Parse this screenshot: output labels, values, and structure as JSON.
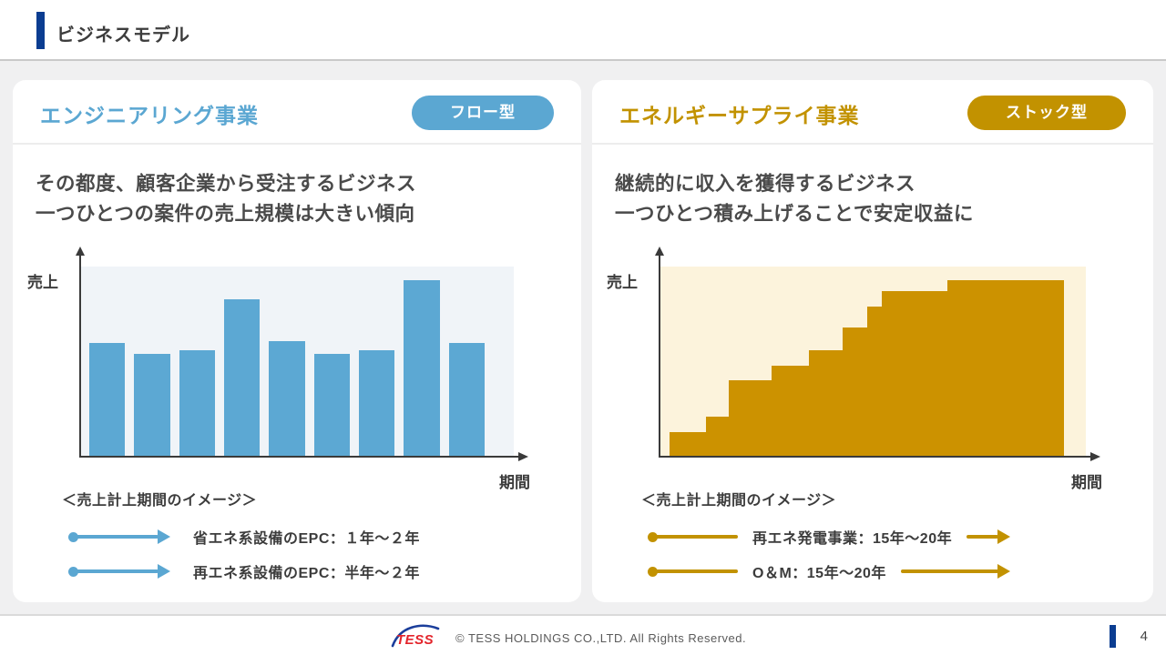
{
  "header": {
    "title": "ビジネスモデル"
  },
  "panels": [
    {
      "title": "エンジニアリング事業",
      "badge": "フロー型",
      "description_line1": "その都度、顧客企業から受注するビジネス",
      "description_line2": "一つひとつの案件の売上規模は大きい傾向",
      "legend_header": "＜売上計上期間のイメージ＞",
      "legend_items": [
        {
          "label": "省エネ系設備のEPC：１年〜２年",
          "trailing_arrow": false
        },
        {
          "label": "再エネ系設備のEPC：半年〜２年",
          "trailing_arrow": false
        }
      ],
      "colors": {
        "accent": "#5BA7D2",
        "plot_bg": "#F0F4F8",
        "fill": "#5CA8D3"
      }
    },
    {
      "title": "エネルギーサプライ事業",
      "badge": "ストック型",
      "description_line1": "継続的に収入を獲得するビジネス",
      "description_line2": "一つひとつ積み上げることで安定収益に",
      "legend_header": "＜売上計上期間のイメージ＞",
      "legend_items": [
        {
          "label": "再エネ発電事業：15年〜20年",
          "trailing_arrow": true
        },
        {
          "label": "O＆M：15年〜20年",
          "trailing_arrow": true
        }
      ],
      "colors": {
        "accent": "#C29200",
        "plot_bg": "#FCF3DC",
        "fill": "#CC9200"
      }
    }
  ],
  "chart_data": [
    {
      "type": "bar",
      "ylabel": "売上",
      "xlabel": "期間",
      "values": [
        60,
        54,
        56,
        83,
        61,
        54,
        56,
        93,
        60
      ],
      "ylim": [
        0,
        100
      ],
      "grid": false,
      "note_type": "conceptual-flow-revenue"
    },
    {
      "type": "area",
      "subtype": "step",
      "ylabel": "売上",
      "xlabel": "期間",
      "steps": [
        {
          "w": 9.2,
          "h": 13
        },
        {
          "w": 5.8,
          "h": 21
        },
        {
          "w": 10.9,
          "h": 40
        },
        {
          "w": 9.5,
          "h": 48
        },
        {
          "w": 8.5,
          "h": 56
        },
        {
          "w": 6.2,
          "h": 68
        },
        {
          "w": 3.7,
          "h": 79
        },
        {
          "w": 16.6,
          "h": 87
        },
        {
          "w": 29.6,
          "h": 93
        }
      ],
      "ylim": [
        0,
        100
      ],
      "grid": false,
      "note_type": "conceptual-stock-revenue"
    }
  ],
  "footer": {
    "logo_text": "TESS",
    "copyright": "© TESS HOLDINGS CO.,LTD. All Rights Reserved.",
    "page_number": "4"
  }
}
